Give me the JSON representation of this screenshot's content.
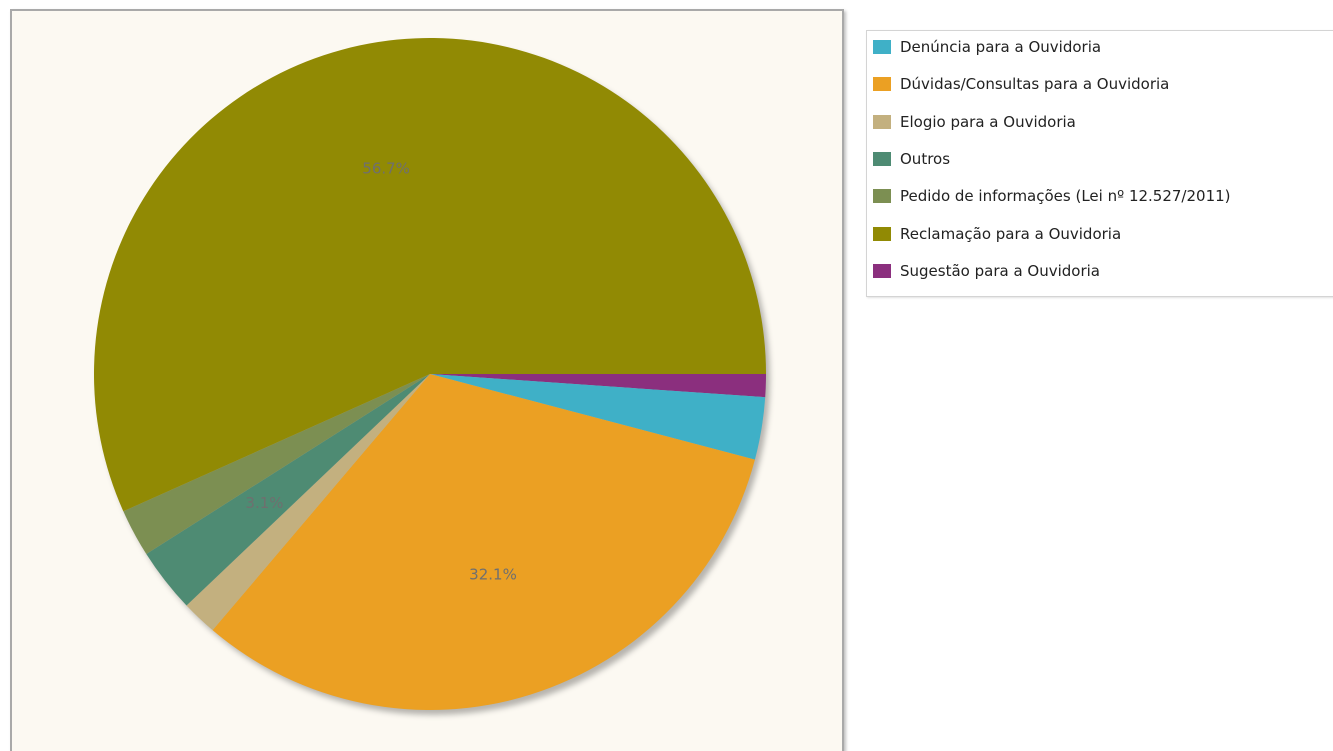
{
  "chart_data": {
    "type": "pie",
    "slices": [
      {
        "label": "Sugestão para a Ouvidoria",
        "value": 1.1,
        "color": "#8b2f7e"
      },
      {
        "label": "Denúncia para a Ouvidoria",
        "value": 3.0,
        "color": "#3fb0c7"
      },
      {
        "label": "Dúvidas/Consultas para a Ouvidoria",
        "value": 32.1,
        "color": "#eba023"
      },
      {
        "label": "Elogio para a Ouvidoria",
        "value": 1.7,
        "color": "#c3b07f"
      },
      {
        "label": "Outros",
        "value": 3.1,
        "color": "#4e8b73"
      },
      {
        "label": "Pedido de informações (Lei nº 12.527/2011)",
        "value": 2.3,
        "color": "#7c8f52"
      },
      {
        "label": "Reclamação para a Ouvidoria",
        "value": 56.7,
        "color": "#918a04"
      }
    ],
    "data_labels": [
      {
        "slice": "Reclamação para a Ouvidoria",
        "text": "56.7%"
      },
      {
        "slice": "Dúvidas/Consultas para a Ouvidoria",
        "text": "32.1%"
      },
      {
        "slice": "Outros",
        "text": "3.1%"
      }
    ],
    "start_angle_deg": 0,
    "direction": "clockwise",
    "legend": {
      "position": "right",
      "items": [
        {
          "label": "Denúncia para a Ouvidoria",
          "color": "#3fb0c7"
        },
        {
          "label": "Dúvidas/Consultas para a Ouvidoria",
          "color": "#eba023"
        },
        {
          "label": "Elogio para a Ouvidoria",
          "color": "#c3b07f"
        },
        {
          "label": "Outros",
          "color": "#4e8b73"
        },
        {
          "label": "Pedido de informações (Lei nº 12.527/2011)",
          "color": "#7c8f52"
        },
        {
          "label": "Reclamação para a Ouvidoria",
          "color": "#918a04"
        },
        {
          "label": "Sugestão para a Ouvidoria",
          "color": "#8b2f7e"
        }
      ]
    }
  }
}
